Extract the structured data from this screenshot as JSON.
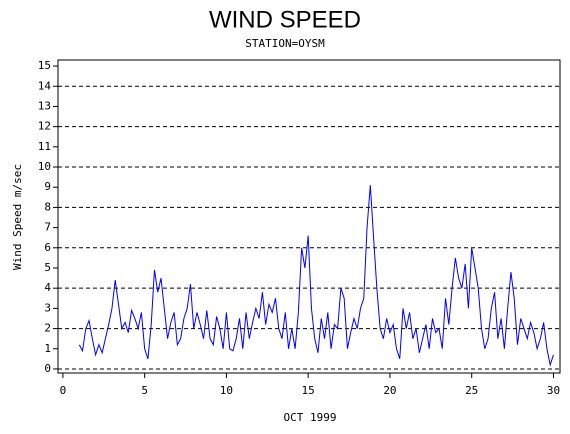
{
  "chart_data": {
    "type": "line",
    "title": "WIND SPEED",
    "subtitle": "STATION=OYSM",
    "y_label": "Wind Speed m/sec",
    "x_label": "OCT 1999",
    "x": [
      1,
      1.2,
      1.4,
      1.6,
      1.8,
      2,
      2.2,
      2.4,
      2.6,
      2.8,
      3,
      3.2,
      3.4,
      3.6,
      3.8,
      4,
      4.2,
      4.4,
      4.6,
      4.8,
      5,
      5.2,
      5.4,
      5.6,
      5.8,
      6,
      6.2,
      6.4,
      6.6,
      6.8,
      7,
      7.2,
      7.4,
      7.6,
      7.8,
      8,
      8.2,
      8.4,
      8.6,
      8.8,
      9,
      9.2,
      9.4,
      9.6,
      9.8,
      10,
      10.2,
      10.4,
      10.6,
      10.8,
      11,
      11.2,
      11.4,
      11.6,
      11.8,
      12,
      12.2,
      12.4,
      12.6,
      12.8,
      13,
      13.2,
      13.4,
      13.6,
      13.8,
      14,
      14.2,
      14.4,
      14.6,
      14.8,
      15,
      15.2,
      15.4,
      15.6,
      15.8,
      16,
      16.2,
      16.4,
      16.6,
      16.8,
      17,
      17.2,
      17.4,
      17.6,
      17.8,
      18,
      18.2,
      18.4,
      18.6,
      18.8,
      19,
      19.2,
      19.4,
      19.6,
      19.8,
      20,
      20.2,
      20.4,
      20.6,
      20.8,
      21,
      21.2,
      21.4,
      21.6,
      21.8,
      22,
      22.2,
      22.4,
      22.6,
      22.8,
      23,
      23.2,
      23.4,
      23.6,
      23.8,
      24,
      24.2,
      24.4,
      24.6,
      24.8,
      25,
      25.2,
      25.4,
      25.6,
      25.8,
      26,
      26.2,
      26.4,
      26.6,
      26.8,
      27,
      27.2,
      27.4,
      27.6,
      27.8,
      28,
      28.2,
      28.4,
      28.6,
      28.8,
      29,
      29.2,
      29.4,
      29.6,
      29.8,
      30
    ],
    "series": [
      {
        "name": "Wind Speed",
        "color": "#0000ff",
        "values": [
          1.2,
          0.9,
          2.0,
          2.4,
          1.5,
          0.7,
          1.2,
          0.8,
          1.5,
          2.2,
          3.0,
          4.4,
          3.2,
          2.0,
          2.3,
          1.8,
          2.9,
          2.5,
          2.0,
          2.8,
          1.0,
          0.5,
          2.2,
          4.9,
          3.8,
          4.5,
          3.0,
          1.5,
          2.3,
          2.8,
          1.2,
          1.5,
          2.5,
          3.0,
          4.2,
          2.0,
          2.8,
          2.2,
          1.5,
          2.9,
          1.5,
          1.2,
          2.6,
          2.0,
          1.0,
          2.8,
          1.0,
          0.9,
          1.5,
          2.5,
          1.0,
          2.8,
          1.5,
          2.3,
          3.0,
          2.5,
          3.8,
          2.2,
          3.2,
          2.8,
          3.5,
          2.0,
          1.5,
          2.8,
          1.0,
          2.0,
          1.0,
          2.8,
          6.0,
          5.0,
          6.6,
          3.0,
          1.5,
          0.8,
          2.5,
          1.5,
          2.8,
          1.0,
          2.2,
          2.0,
          4.0,
          3.5,
          1.0,
          1.8,
          2.5,
          2.0,
          3.0,
          3.5,
          7.0,
          9.1,
          6.5,
          4.0,
          2.0,
          1.5,
          2.5,
          1.8,
          2.2,
          1.0,
          0.5,
          3.0,
          2.0,
          2.8,
          1.5,
          2.0,
          0.8,
          1.5,
          2.2,
          1.0,
          2.5,
          1.8,
          2.0,
          1.0,
          3.5,
          2.2,
          4.0,
          5.5,
          4.5,
          4.0,
          5.2,
          3.0,
          6.0,
          5.0,
          4.0,
          2.0,
          1.0,
          1.5,
          3.0,
          3.8,
          1.5,
          2.5,
          1.0,
          3.0,
          4.8,
          3.5,
          1.2,
          2.5,
          2.0,
          1.5,
          2.3,
          1.8,
          1.0,
          1.5,
          2.3,
          1.0,
          0.2,
          0.7
        ]
      }
    ],
    "xlim": [
      -0.3,
      30.4
    ],
    "ylim": [
      -0.2,
      15.3
    ],
    "xticks": [
      0,
      5,
      10,
      15,
      20,
      25,
      30
    ],
    "yticks": [
      0,
      1,
      2,
      3,
      4,
      5,
      6,
      7,
      8,
      9,
      10,
      11,
      12,
      13,
      14,
      15
    ],
    "grid_lines": [
      0,
      2,
      4,
      6,
      8,
      10,
      12,
      14
    ]
  }
}
